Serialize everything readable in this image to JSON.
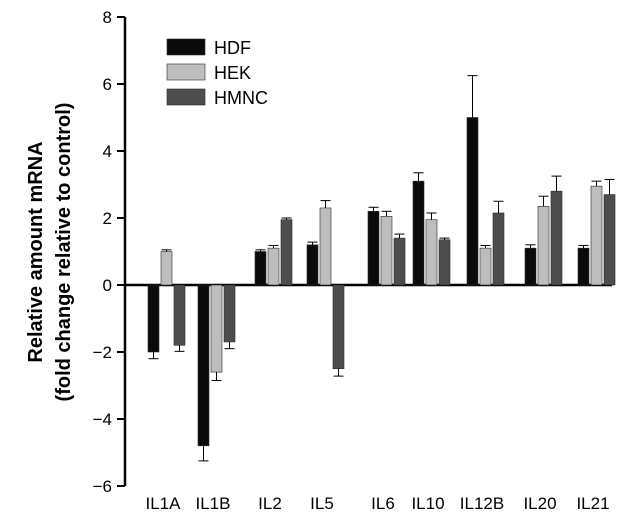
{
  "chart_data": {
    "type": "bar",
    "ylabel_line1": "Relative amount mRNA",
    "ylabel_line2": "(fold change relative to control)",
    "xlabel": "",
    "ylim": [
      -6,
      8
    ],
    "yticks": [
      -6,
      -4,
      -2,
      0,
      2,
      4,
      6,
      8
    ],
    "grid": false,
    "legend_position": "top-left",
    "categories": [
      "IL1A",
      "IL1B",
      "IL2",
      "IL5",
      "IL6",
      "IL10",
      "IL12B",
      "IL20",
      "IL21"
    ],
    "series": [
      {
        "name": "HDF",
        "color": "#0a0a0a",
        "values": [
          -2.0,
          -4.8,
          1.0,
          1.2,
          2.2,
          3.1,
          5.0,
          1.1,
          1.1
        ],
        "errors": [
          0.2,
          0.45,
          0.05,
          0.08,
          0.12,
          0.25,
          1.25,
          0.1,
          0.08
        ]
      },
      {
        "name": "HEK",
        "color": "#bdbdbd",
        "values": [
          1.0,
          -2.6,
          1.1,
          2.3,
          2.05,
          1.95,
          1.1,
          2.35,
          2.95
        ],
        "errors": [
          0.05,
          0.25,
          0.08,
          0.22,
          0.15,
          0.2,
          0.08,
          0.3,
          0.15
        ]
      },
      {
        "name": "HMNC",
        "color": "#4d4d4d",
        "values": [
          -1.8,
          -1.7,
          1.95,
          -2.5,
          1.4,
          1.35,
          2.15,
          2.8,
          2.7
        ],
        "errors": [
          0.18,
          0.2,
          0.05,
          0.22,
          0.12,
          0.05,
          0.35,
          0.45,
          0.45
        ]
      }
    ]
  }
}
